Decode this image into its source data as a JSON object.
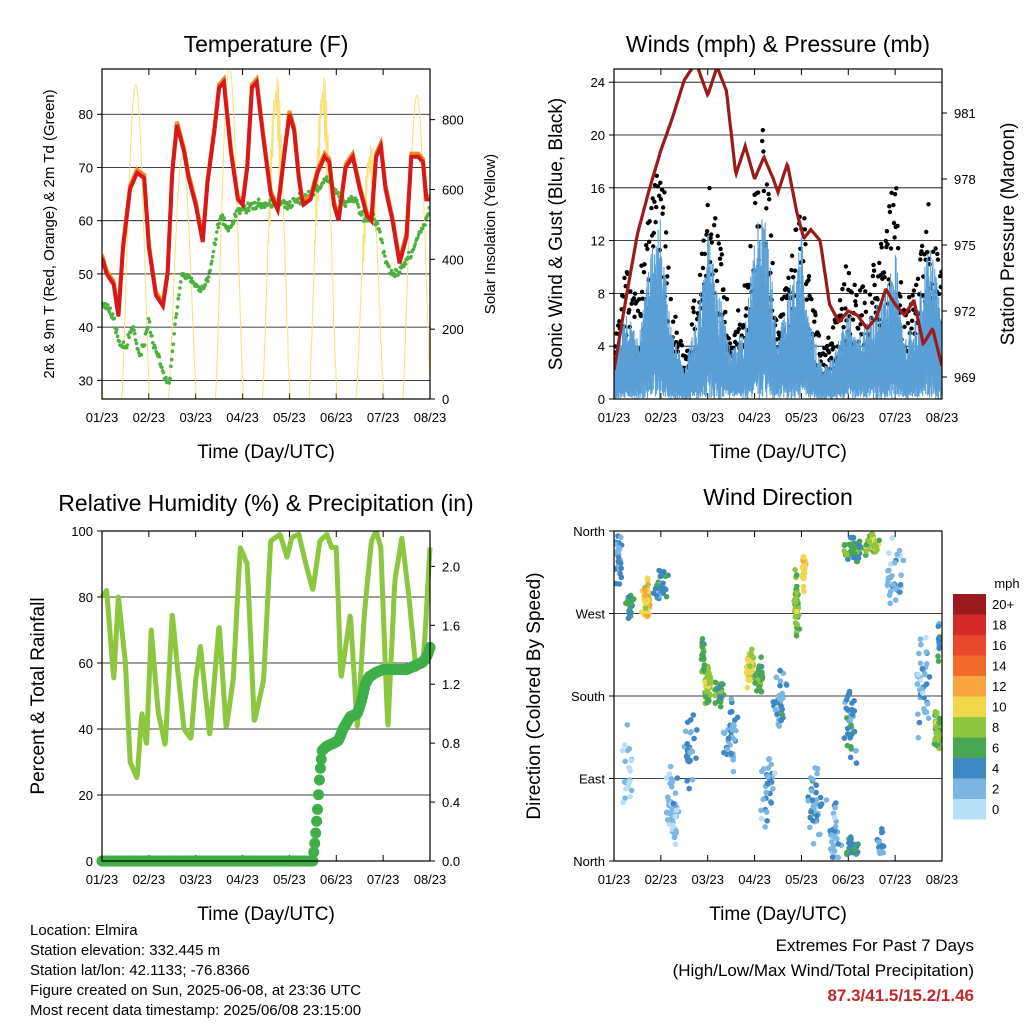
{
  "colors": {
    "temp2m": "#d7191c",
    "temp9m": "#f08a24",
    "dewpoint": "#4fb040",
    "solar": "#f6e27a",
    "wind": "#5a9fd6",
    "gust": "#000000",
    "pressure": "#9b1b1b",
    "rh": "#8dc63f",
    "precip": "#3fae49"
  },
  "chart_data": [
    {
      "type": "line",
      "title": "Temperature (F)",
      "xlabel": "Time (Day/UTC)",
      "ylabel": "2m & 9m T (Red, Orange) & 2m Td (Green)",
      "y2label": "Solar Insolation (Yellow)",
      "xlim": [
        0,
        7
      ],
      "ylim": [
        26.5,
        88.5
      ],
      "y2lim": [
        0,
        945
      ],
      "x_ticks": [
        "01/23",
        "02/23",
        "03/23",
        "04/23",
        "05/23",
        "06/23",
        "07/23",
        "08/23"
      ],
      "y_ticks": [
        30,
        40,
        50,
        60,
        70,
        80
      ],
      "y2_ticks": [
        0,
        200,
        400,
        600,
        800
      ],
      "series": [
        {
          "key": "temp",
          "x": [
            0,
            0.1,
            0.25,
            0.35,
            0.45,
            0.6,
            0.75,
            0.9,
            1.0,
            1.15,
            1.3,
            1.4,
            1.5,
            1.6,
            1.75,
            1.85,
            2.0,
            2.15,
            2.25,
            2.4,
            2.5,
            2.6,
            2.75,
            2.9,
            3.0,
            3.1,
            3.2,
            3.3,
            3.45,
            3.6,
            3.75,
            3.9,
            4.0,
            4.1,
            4.2,
            4.25,
            4.3,
            4.45,
            4.6,
            4.75,
            4.85,
            4.95,
            5.05,
            5.2,
            5.35,
            5.5,
            5.65,
            5.75,
            5.85,
            5.95,
            6.05,
            6.2,
            6.35,
            6.5,
            6.6,
            6.75,
            6.85,
            6.92,
            7.0
          ],
          "y": [
            53,
            50,
            48,
            42,
            55,
            66,
            69,
            68,
            55,
            46,
            44,
            50,
            69,
            78,
            73,
            68,
            63,
            56,
            67,
            77,
            85,
            86,
            73,
            64,
            63,
            70,
            85,
            86,
            75,
            65,
            62,
            73,
            80,
            77,
            68,
            65,
            63,
            64,
            69,
            72,
            71,
            63,
            60,
            70,
            72,
            66,
            61,
            60,
            72,
            74,
            66,
            60,
            52,
            57,
            72,
            72,
            71,
            64,
            64
          ]
        },
        {
          "key": "dewpoint",
          "x": [
            0,
            0.1,
            0.25,
            0.35,
            0.5,
            0.65,
            0.8,
            0.9,
            1.0,
            1.1,
            1.25,
            1.35,
            1.45,
            1.55,
            1.7,
            1.9,
            2.0,
            2.15,
            2.3,
            2.45,
            2.55,
            2.7,
            2.8,
            2.9,
            3.0,
            3.2,
            3.4,
            3.6,
            3.8,
            4.0,
            4.2,
            4.4,
            4.6,
            4.8,
            5.0,
            5.2,
            5.4,
            5.6,
            5.75,
            5.9,
            6.0,
            6.15,
            6.3,
            6.45,
            6.6,
            6.75,
            6.9,
            7.0
          ],
          "y": [
            44,
            44,
            42,
            37,
            36,
            40,
            35,
            37,
            41,
            37,
            33,
            30,
            30,
            40,
            50,
            49,
            48,
            47,
            50,
            58,
            61,
            58,
            60,
            62,
            62,
            63,
            63,
            63,
            63,
            63,
            64,
            65,
            66,
            68,
            65,
            63,
            64,
            60,
            61,
            59,
            55,
            50,
            50,
            52,
            54,
            57,
            60,
            63
          ]
        },
        {
          "key": "solar",
          "day_peaks": [
            930,
            900,
            700,
            950,
            950,
            950,
            750,
            870
          ],
          "solar_noon_offset": 0.72,
          "day_length": 0.6
        }
      ]
    },
    {
      "type": "scatter",
      "title": "Winds (mph) & Pressure (mb)",
      "xlabel": "Time (Day/UTC)",
      "ylabel": "Sonic Wind & Gust (Blue, Black)",
      "y2label": "Station Pressure (Maroon)",
      "xlim": [
        0,
        7
      ],
      "ylim": [
        0,
        25
      ],
      "y2lim": [
        968.0,
        983.0
      ],
      "x_ticks": [
        "01/23",
        "02/23",
        "03/23",
        "04/23",
        "05/23",
        "06/23",
        "07/23",
        "08/23"
      ],
      "y_ticks": [
        0,
        4,
        8,
        12,
        16,
        20,
        24
      ],
      "y2_ticks": [
        969,
        972,
        975,
        978,
        981
      ],
      "wind_envelope": {
        "x": [
          0,
          0.25,
          0.5,
          0.8,
          1.0,
          1.2,
          1.5,
          1.8,
          2.0,
          2.2,
          2.5,
          2.8,
          3.0,
          3.2,
          3.5,
          3.8,
          4.0,
          4.2,
          4.45,
          4.7,
          5.0,
          5.2,
          5.5,
          5.8,
          6.0,
          6.2,
          6.5,
          6.7,
          7.0
        ],
        "y": [
          2,
          6,
          4,
          10,
          12,
          5,
          2,
          6,
          11,
          8,
          3,
          5,
          11,
          13,
          4,
          8,
          11,
          5,
          2,
          3,
          6,
          4,
          6,
          7,
          10,
          4,
          6,
          11,
          6
        ]
      },
      "gust_envelope": {
        "x": [
          0,
          0.25,
          0.5,
          0.8,
          1.0,
          1.2,
          1.5,
          1.8,
          2.0,
          2.2,
          2.5,
          2.8,
          3.0,
          3.2,
          3.5,
          3.8,
          4.0,
          4.2,
          4.45,
          4.7,
          5.0,
          5.2,
          5.5,
          5.8,
          6.0,
          6.2,
          6.5,
          6.7,
          7.0
        ],
        "y": [
          4,
          10,
          8,
          16,
          21,
          8,
          4,
          9,
          17,
          14,
          5,
          9,
          16,
          21,
          6,
          12,
          17,
          8,
          4,
          6,
          11,
          8,
          10,
          13,
          18,
          7,
          10,
          15,
          10
        ]
      },
      "pressure": {
        "x": [
          0,
          0.25,
          0.5,
          0.75,
          1.0,
          1.25,
          1.5,
          1.75,
          2.0,
          2.2,
          2.4,
          2.6,
          2.8,
          3.0,
          3.2,
          3.4,
          3.5,
          3.7,
          3.9,
          4.05,
          4.2,
          4.4,
          4.6,
          4.8,
          5.0,
          5.2,
          5.4,
          5.6,
          5.8,
          6.0,
          6.2,
          6.4,
          6.6,
          6.8,
          7.0
        ],
        "y": [
          969.3,
          972.5,
          975.5,
          977.5,
          979.3,
          980.8,
          982.5,
          983.3,
          981.8,
          983.1,
          982.0,
          978.2,
          979.5,
          978.0,
          979.0,
          978.0,
          977.4,
          978.7,
          976.5,
          975.3,
          975.7,
          975.2,
          972.3,
          971.5,
          972.0,
          971.8,
          971.2,
          971.7,
          973.0,
          972.3,
          971.8,
          972.5,
          970.5,
          971.2,
          969.5
        ]
      }
    },
    {
      "type": "line",
      "title": "Relative Humidity (%) & Precipitation (in)",
      "xlabel": "Time (Day/UTC)",
      "ylabel": "Percent & Total Rainfall",
      "xlim": [
        0,
        7
      ],
      "ylim": [
        0,
        100
      ],
      "y2lim": [
        0,
        2.24
      ],
      "x_ticks": [
        "01/23",
        "02/23",
        "03/23",
        "04/23",
        "05/23",
        "06/23",
        "07/23",
        "08/23"
      ],
      "y_ticks": [
        0,
        20,
        40,
        60,
        80,
        100
      ],
      "y2_ticks": [
        "0.0",
        "0.4",
        "0.8",
        "1.2",
        "1.6",
        "2.0"
      ],
      "series": [
        {
          "key": "rh",
          "x": [
            0,
            0.1,
            0.25,
            0.35,
            0.5,
            0.6,
            0.75,
            0.85,
            0.95,
            1.05,
            1.2,
            1.35,
            1.5,
            1.6,
            1.75,
            1.9,
            2.0,
            2.1,
            2.3,
            2.5,
            2.65,
            2.8,
            2.95,
            3.1,
            3.25,
            3.45,
            3.6,
            3.8,
            3.95,
            4.05,
            4.2,
            4.35,
            4.5,
            4.65,
            4.8,
            4.9,
            5.0,
            5.1,
            5.3,
            5.45,
            5.6,
            5.75,
            5.85,
            5.95,
            6.1,
            6.25,
            6.4,
            6.55,
            6.7,
            6.85,
            6.9,
            7.0
          ],
          "y": [
            80,
            82,
            55,
            80,
            60,
            30,
            25,
            45,
            35,
            70,
            45,
            35,
            75,
            60,
            40,
            37,
            55,
            65,
            38,
            72,
            40,
            55,
            95,
            90,
            42,
            55,
            97,
            99,
            92,
            98,
            99,
            90,
            82,
            97,
            99,
            95,
            95,
            55,
            75,
            40,
            75,
            97,
            100,
            95,
            40,
            85,
            98,
            80,
            58,
            60,
            70,
            95
          ]
        },
        {
          "key": "precip",
          "x": [
            0,
            4.5,
            4.55,
            4.6,
            4.65,
            4.7,
            4.8,
            4.95,
            5.05,
            5.15,
            5.3,
            5.45,
            5.55,
            5.62,
            5.7,
            5.85,
            6.0,
            6.5,
            6.85,
            6.95,
            7.0
          ],
          "y": [
            0,
            0,
            0.15,
            0.35,
            0.6,
            0.75,
            0.78,
            0.8,
            0.82,
            0.9,
            0.98,
            1.0,
            1.1,
            1.2,
            1.25,
            1.28,
            1.3,
            1.3,
            1.35,
            1.4,
            1.45
          ]
        }
      ]
    },
    {
      "type": "scatter",
      "title": "Wind Direction",
      "xlabel": "Time (Day/UTC)",
      "ylabel": "Direction (Colored By Speed)",
      "xlim": [
        0,
        7
      ],
      "ylim": [
        0,
        360
      ],
      "x_ticks": [
        "01/23",
        "02/23",
        "03/23",
        "04/23",
        "05/23",
        "06/23",
        "07/23",
        "08/23"
      ],
      "y_ticks": [
        "North",
        "East",
        "South",
        "West",
        "North"
      ],
      "legend": {
        "title": "mph",
        "placement": "right",
        "labels": [
          "20+",
          "18",
          "16",
          "14",
          "12",
          "10",
          "8",
          "6",
          "4",
          "2",
          "0"
        ],
        "colors": [
          "#9b1a1d",
          "#d42a2a",
          "#e8492c",
          "#f26b2d",
          "#f7a540",
          "#f1d84a",
          "#8ec640",
          "#49a653",
          "#3f86c4",
          "#7db6e3",
          "#b9dff6"
        ]
      },
      "clusters": [
        {
          "x": 0.1,
          "dir": 330,
          "spread_x": 0.1,
          "spread_dir": 40,
          "speed": 3,
          "n": 30
        },
        {
          "x": 0.35,
          "dir": 280,
          "spread_x": 0.12,
          "spread_dir": 20,
          "speed": 5,
          "n": 25
        },
        {
          "x": 0.7,
          "dir": 285,
          "spread_x": 0.12,
          "spread_dir": 25,
          "speed": 10,
          "n": 60
        },
        {
          "x": 1.0,
          "dir": 300,
          "spread_x": 0.2,
          "spread_dir": 30,
          "speed": 4,
          "n": 30
        },
        {
          "x": 0.3,
          "dir": 100,
          "spread_x": 0.15,
          "spread_dir": 60,
          "speed": 1,
          "n": 25
        },
        {
          "x": 1.25,
          "dir": 60,
          "spread_x": 0.2,
          "spread_dir": 60,
          "speed": 2,
          "n": 45
        },
        {
          "x": 1.6,
          "dir": 120,
          "spread_x": 0.2,
          "spread_dir": 50,
          "speed": 3,
          "n": 30
        },
        {
          "x": 2.0,
          "dir": 190,
          "spread_x": 0.1,
          "spread_dir": 25,
          "speed": 8,
          "n": 55
        },
        {
          "x": 2.25,
          "dir": 185,
          "spread_x": 0.15,
          "spread_dir": 20,
          "speed": 6,
          "n": 30
        },
        {
          "x": 1.9,
          "dir": 230,
          "spread_x": 0.05,
          "spread_dir": 40,
          "speed": 6,
          "n": 20
        },
        {
          "x": 2.5,
          "dir": 130,
          "spread_x": 0.2,
          "spread_dir": 60,
          "speed": 3,
          "n": 35
        },
        {
          "x": 2.9,
          "dir": 210,
          "spread_x": 0.1,
          "spread_dir": 30,
          "speed": 9,
          "n": 60
        },
        {
          "x": 3.1,
          "dir": 200,
          "spread_x": 0.15,
          "spread_dir": 30,
          "speed": 6,
          "n": 30
        },
        {
          "x": 3.3,
          "dir": 80,
          "spread_x": 0.2,
          "spread_dir": 60,
          "speed": 3,
          "n": 30
        },
        {
          "x": 3.55,
          "dir": 170,
          "spread_x": 0.2,
          "spread_dir": 60,
          "speed": 3,
          "n": 35
        },
        {
          "x": 3.9,
          "dir": 280,
          "spread_x": 0.08,
          "spread_dir": 50,
          "speed": 7,
          "n": 50
        },
        {
          "x": 4.05,
          "dir": 315,
          "spread_x": 0.05,
          "spread_dir": 30,
          "speed": 10,
          "n": 25
        },
        {
          "x": 4.3,
          "dir": 60,
          "spread_x": 0.2,
          "spread_dir": 50,
          "speed": 3,
          "n": 40
        },
        {
          "x": 4.7,
          "dir": 30,
          "spread_x": 0.2,
          "spread_dir": 40,
          "speed": 2,
          "n": 35
        },
        {
          "x": 5.05,
          "dir": 150,
          "spread_x": 0.2,
          "spread_dir": 60,
          "speed": 4,
          "n": 35
        },
        {
          "x": 5.1,
          "dir": 15,
          "spread_x": 0.2,
          "spread_dir": 15,
          "speed": 5,
          "n": 30
        },
        {
          "x": 5.1,
          "dir": 340,
          "spread_x": 0.25,
          "spread_dir": 20,
          "speed": 6,
          "n": 50
        },
        {
          "x": 5.5,
          "dir": 345,
          "spread_x": 0.2,
          "spread_dir": 15,
          "speed": 8,
          "n": 55
        },
        {
          "x": 5.7,
          "dir": 20,
          "spread_x": 0.1,
          "spread_dir": 20,
          "speed": 4,
          "n": 20
        },
        {
          "x": 6.0,
          "dir": 310,
          "spread_x": 0.3,
          "spread_dir": 50,
          "speed": 2,
          "n": 35
        },
        {
          "x": 6.6,
          "dir": 200,
          "spread_x": 0.25,
          "spread_dir": 80,
          "speed": 2,
          "n": 40
        },
        {
          "x": 6.9,
          "dir": 140,
          "spread_x": 0.1,
          "spread_dir": 30,
          "speed": 7,
          "n": 45
        },
        {
          "x": 6.95,
          "dir": 240,
          "spread_x": 0.05,
          "spread_dir": 30,
          "speed": 4,
          "n": 15
        }
      ]
    }
  ],
  "info": {
    "location": "Location: Elmira",
    "elevation": "Station elevation: 332.445 m",
    "latlon": "Station lat/lon: 42.1133; -76.8366",
    "created": "Figure created on Sun, 2025-06-08, at 23:36 UTC",
    "recent": "Most recent data timestamp: 2025/06/08 23:15:00"
  },
  "extremes": {
    "line1": "Extremes For Past 7 Days",
    "line2": "(High/Low/Max Wind/Total Precipitation)",
    "values": "87.3/41.5/15.2/1.46"
  }
}
